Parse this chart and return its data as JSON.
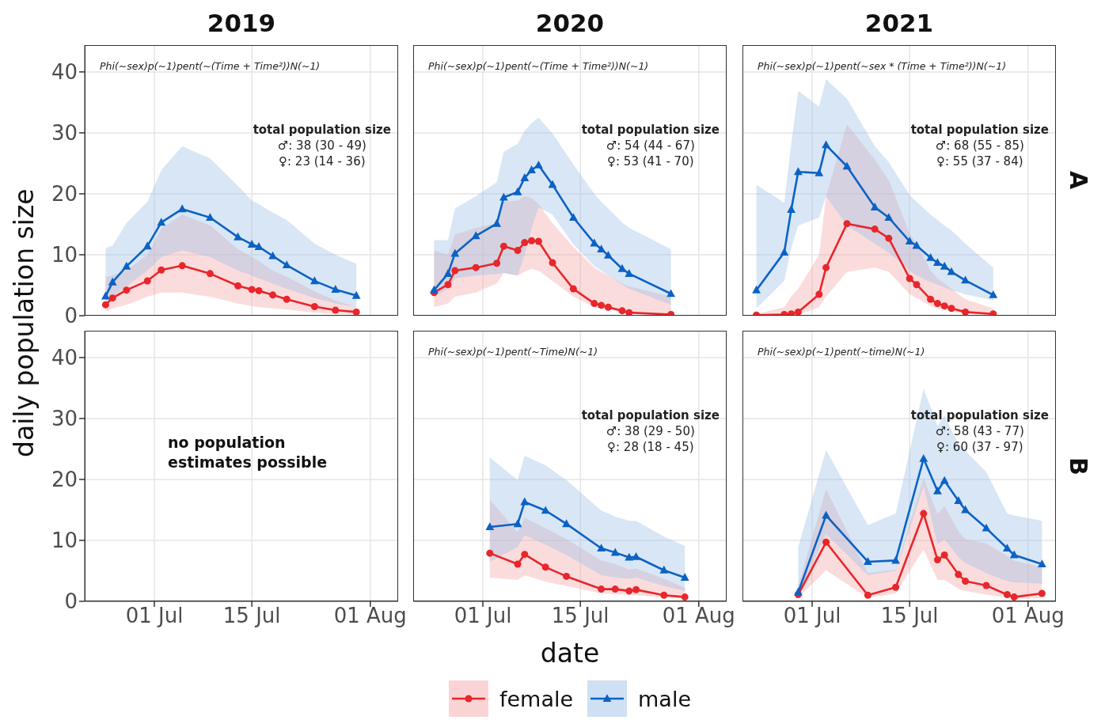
{
  "chart_data": [
    {
      "type": "line",
      "title": "2019",
      "ylabel": "daily population size",
      "x": [
        "2019-06-24",
        "2019-06-25",
        "2019-06-27",
        "2019-06-30",
        "2019-07-02",
        "2019-07-05",
        "2019-07-09",
        "2019-07-13",
        "2019-07-15",
        "2019-07-16",
        "2019-07-18",
        "2019-07-20",
        "2019-07-24",
        "2019-07-27",
        "2019-07-30"
      ],
      "series": [
        {
          "name": "female",
          "color": "#e8262b",
          "marker": "circle",
          "values": [
            1.8,
            2.9,
            4.2,
            5.7,
            7.5,
            8.2,
            6.9,
            4.9,
            4.3,
            4.1,
            3.4,
            2.7,
            1.5,
            0.9,
            0.6
          ],
          "lower": [
            0.7,
            1.2,
            1.8,
            3.1,
            3.8,
            3.8,
            3.1,
            2.0,
            1.6,
            1.4,
            1.2,
            1.0,
            0.5,
            0.3,
            0.2
          ],
          "upper": [
            6.4,
            6.6,
            7.4,
            10.0,
            14.3,
            16.6,
            14.8,
            10.9,
            9.6,
            9.0,
            7.4,
            6.4,
            4.0,
            2.5,
            1.4
          ]
        },
        {
          "name": "male",
          "color": "#0b62c4",
          "marker": "triangle",
          "values": [
            3.2,
            5.5,
            8.1,
            11.4,
            15.3,
            17.5,
            16.1,
            12.9,
            11.7,
            11.3,
            9.8,
            8.3,
            5.7,
            4.3,
            3.3
          ],
          "lower": [
            2.5,
            3.1,
            4.8,
            7.4,
            9.6,
            10.7,
            9.6,
            7.4,
            6.6,
            6.1,
            5.3,
            4.4,
            2.9,
            2.0,
            1.4
          ],
          "upper": [
            11.1,
            11.5,
            15.2,
            18.7,
            23.9,
            27.8,
            25.8,
            21.3,
            18.9,
            18.3,
            16.9,
            15.7,
            11.8,
            10.0,
            8.5
          ]
        }
      ],
      "xlim": [
        "2019-06-21",
        "2019-08-05"
      ],
      "ylim": [
        0,
        44.4
      ],
      "xticks": [
        {
          "value": "2019-07-01",
          "label": null
        },
        {
          "value": "2019-07-15",
          "label": null
        },
        {
          "value": "2019-08-01",
          "label": null
        }
      ],
      "yticks": [
        0,
        10,
        20,
        30,
        40
      ],
      "grid": true,
      "tick_labels": "y",
      "legend": "bottom",
      "annotations": [
        "Phi(~sex)p(~1)pent(~(Time + Time²))N(~1)",
        "total population size",
        "♂: 38 (30 - 49)",
        "♀: 23 (14 - 36)"
      ]
    },
    {
      "type": "line",
      "title": "2020",
      "x": [
        "2020-06-24",
        "2020-06-26",
        "2020-06-27",
        "2020-06-30",
        "2020-07-03",
        "2020-07-04",
        "2020-07-06",
        "2020-07-07",
        "2020-07-08",
        "2020-07-09",
        "2020-07-11",
        "2020-07-14",
        "2020-07-17",
        "2020-07-18",
        "2020-07-19",
        "2020-07-21",
        "2020-07-22",
        "2020-07-28"
      ],
      "series": [
        {
          "color": "#e8262b",
          "marker": "circle",
          "values": [
            3.8,
            5.1,
            7.4,
            7.9,
            8.6,
            11.4,
            10.7,
            12.0,
            12.3,
            12.2,
            8.7,
            4.4,
            2.0,
            1.7,
            1.4,
            0.8,
            0.5,
            0.2
          ],
          "lower": [
            1.4,
            2.0,
            3.1,
            3.8,
            5.3,
            7.0,
            6.6,
            7.2,
            7.7,
            7.4,
            5.7,
            3.1,
            1.4,
            1.2,
            1.0,
            0.5,
            0.3,
            0.1
          ],
          "upper": [
            10.7,
            10.0,
            13.3,
            14.4,
            15.2,
            18.7,
            18.9,
            19.6,
            19.3,
            18.3,
            15.2,
            11.3,
            7.9,
            7.2,
            6.6,
            5.3,
            4.8,
            3.1
          ]
        },
        {
          "color": "#0b62c4",
          "marker": "triangle",
          "values": [
            4.2,
            6.9,
            10.2,
            13.1,
            15.1,
            19.4,
            20.3,
            22.6,
            23.9,
            24.7,
            21.5,
            16.1,
            11.9,
            10.9,
            9.9,
            7.7,
            6.9,
            3.6
          ],
          "lower": [
            3.1,
            4.4,
            6.1,
            6.6,
            6.8,
            7.0,
            6.6,
            10.0,
            14.3,
            17.8,
            16.6,
            11.7,
            8.1,
            7.4,
            6.6,
            5.1,
            4.4,
            1.8
          ],
          "upper": [
            12.4,
            12.4,
            17.6,
            19.6,
            21.9,
            26.9,
            28.2,
            30.3,
            31.6,
            32.5,
            29.9,
            24.8,
            20.0,
            18.7,
            17.6,
            15.3,
            14.4,
            10.9
          ]
        }
      ],
      "xlim": [
        "2020-06-21",
        "2020-08-05"
      ],
      "ylim": [
        0,
        44.4
      ],
      "xticks": [
        {
          "value": "2020-07-01",
          "label": null
        },
        {
          "value": "2020-07-15",
          "label": null
        },
        {
          "value": "2020-08-01",
          "label": null
        }
      ],
      "yticks": [
        0,
        10,
        20,
        30,
        40
      ],
      "grid": true,
      "tick_labels": false,
      "annotations": [
        "Phi(~sex)p(~1)pent(~(Time + Time²))N(~1)",
        "total population size",
        "♂: 54 (44 - 67)",
        "♀: 53 (41 - 70)"
      ]
    },
    {
      "type": "line",
      "title": "2021",
      "y2label": "A",
      "x": [
        "2021-06-23",
        "2021-06-27",
        "2021-06-28",
        "2021-06-29",
        "2021-07-02",
        "2021-07-03",
        "2021-07-06",
        "2021-07-10",
        "2021-07-12",
        "2021-07-15",
        "2021-07-16",
        "2021-07-18",
        "2021-07-19",
        "2021-07-20",
        "2021-07-21",
        "2021-07-23",
        "2021-07-27"
      ],
      "series": [
        {
          "color": "#e8262b",
          "marker": "circle",
          "values": [
            0.1,
            0.2,
            0.3,
            0.6,
            3.5,
            7.9,
            15.1,
            14.2,
            12.7,
            6.1,
            5.1,
            2.7,
            2.0,
            1.6,
            1.2,
            0.6,
            0.3
          ],
          "lower": [
            0.0,
            0.0,
            0.1,
            0.1,
            1.4,
            3.1,
            7.2,
            7.9,
            7.2,
            3.5,
            2.9,
            1.6,
            1.2,
            1.0,
            0.7,
            0.3,
            0.1
          ],
          "upper": [
            0.3,
            1.4,
            3.1,
            4.4,
            10.0,
            19.6,
            31.4,
            25.6,
            22.2,
            13.5,
            11.8,
            7.4,
            6.1,
            5.3,
            4.4,
            2.7,
            1.2
          ]
        },
        {
          "color": "#0b62c4",
          "marker": "triangle",
          "values": [
            4.2,
            10.4,
            17.4,
            23.6,
            23.4,
            28.0,
            24.5,
            17.8,
            16.1,
            12.2,
            11.5,
            9.5,
            8.7,
            8.1,
            7.2,
            5.8,
            3.4
          ],
          "lower": [
            1.2,
            5.7,
            11.1,
            14.8,
            16.1,
            19.6,
            14.8,
            11.8,
            10.4,
            7.4,
            6.6,
            5.5,
            5.1,
            4.6,
            4.2,
            3.5,
            2.5
          ],
          "upper": [
            21.5,
            18.5,
            28.2,
            36.9,
            34.3,
            38.8,
            35.6,
            27.8,
            25.2,
            19.8,
            18.7,
            16.6,
            15.7,
            14.8,
            14.0,
            11.8,
            7.9
          ]
        }
      ],
      "xlim": [
        "2021-06-21",
        "2021-08-05"
      ],
      "ylim": [
        0,
        44.4
      ],
      "xticks": [
        {
          "value": "2021-07-01",
          "label": null
        },
        {
          "value": "2021-07-15",
          "label": null
        },
        {
          "value": "2021-08-01",
          "label": null
        }
      ],
      "yticks": [
        0,
        10,
        20,
        30,
        40
      ],
      "grid": true,
      "tick_labels": false,
      "annotations": [
        "Phi(~sex)p(~1)pent(~sex * (Time + Time²))N(~1)",
        "total population size",
        "♂: 68 (55 - 85)",
        "♀: 55 (37 - 84)"
      ]
    },
    {
      "type": "line",
      "xlim": [
        "2019-06-21",
        "2019-08-05"
      ],
      "ylim": [
        0,
        44.4
      ],
      "xticks": [
        {
          "value": "2019-07-01",
          "label": "01 Jul"
        },
        {
          "value": "2019-07-15",
          "label": "15 Jul"
        },
        {
          "value": "2019-08-01",
          "label": "01 Aug"
        }
      ],
      "yticks": [
        0,
        10,
        20,
        30,
        40
      ],
      "grid": true,
      "annotations": [
        "no population estimates possible"
      ]
    },
    {
      "type": "line",
      "xlabel": "date",
      "x": [
        "2020-07-02",
        "2020-07-06",
        "2020-07-07",
        "2020-07-10",
        "2020-07-13",
        "2020-07-18",
        "2020-07-20",
        "2020-07-22",
        "2020-07-23",
        "2020-07-27",
        "2020-07-30"
      ],
      "series": [
        {
          "color": "#e8262b",
          "marker": "circle",
          "values": [
            7.9,
            6.1,
            7.7,
            5.6,
            4.1,
            2.0,
            2.0,
            1.7,
            1.9,
            1.0,
            0.7
          ],
          "lower": [
            3.9,
            3.5,
            4.3,
            3.2,
            2.5,
            1.3,
            1.2,
            1.0,
            1.0,
            0.6,
            0.5
          ],
          "upper": [
            16.7,
            11.3,
            13.7,
            12.0,
            10.2,
            6.7,
            6.1,
            5.2,
            5.4,
            3.7,
            2.2
          ]
        },
        {
          "color": "#0b62c4",
          "marker": "triangle",
          "values": [
            12.2,
            12.7,
            16.3,
            14.9,
            12.7,
            8.7,
            8.0,
            7.2,
            7.3,
            5.1,
            3.9
          ],
          "lower": [
            6.5,
            8.9,
            10.8,
            9.3,
            7.6,
            4.3,
            3.9,
            3.7,
            3.9,
            2.5,
            1.7
          ],
          "upper": [
            23.6,
            19.9,
            23.9,
            22.3,
            19.9,
            14.9,
            13.9,
            13.2,
            13.2,
            10.6,
            9.1
          ]
        }
      ],
      "xlim": [
        "2020-06-21",
        "2020-08-05"
      ],
      "ylim": [
        0,
        44.4
      ],
      "xticks": [
        {
          "value": "2020-07-01",
          "label": "01 Jul"
        },
        {
          "value": "2020-07-15",
          "label": "15 Jul"
        },
        {
          "value": "2020-08-01",
          "label": "01 Aug"
        }
      ],
      "yticks": [
        0,
        10,
        20,
        30,
        40
      ],
      "grid": true,
      "tick_labels": "x",
      "annotations": [
        "Phi(~sex)p(~1)pent(~Time)N(~1)",
        "total population size",
        "♂: 38 (29 - 50)",
        "♀: 28 (18 - 45)"
      ]
    },
    {
      "type": "line",
      "y2label": "B",
      "x": [
        "2021-06-29",
        "2021-07-03",
        "2021-07-09",
        "2021-07-13",
        "2021-07-17",
        "2021-07-19",
        "2021-07-20",
        "2021-07-22",
        "2021-07-23",
        "2021-07-26",
        "2021-07-29",
        "2021-07-30",
        "2021-08-03"
      ],
      "series": [
        {
          "color": "#e8262b",
          "marker": "circle",
          "values": [
            1.1,
            9.7,
            1.0,
            2.3,
            14.4,
            6.8,
            7.6,
            4.4,
            3.3,
            2.6,
            1.1,
            0.7,
            1.3
          ],
          "lower": [
            0.6,
            5.1,
            0.6,
            1.3,
            8.5,
            3.5,
            3.5,
            2.0,
            1.7,
            1.1,
            0.6,
            0.4,
            0.6
          ],
          "upper": [
            2.5,
            18.4,
            4.6,
            5.2,
            20.2,
            14.3,
            15.6,
            11.5,
            10.2,
            9.5,
            7.4,
            6.7,
            5.6
          ]
        },
        {
          "color": "#0b62c4",
          "marker": "triangle",
          "values": [
            1.5,
            14.1,
            6.5,
            6.7,
            23.4,
            18.1,
            19.8,
            16.5,
            15.0,
            12.0,
            8.7,
            7.6,
            6.1
          ],
          "lower": [
            1.0,
            11.0,
            4.3,
            5.0,
            18.9,
            9.3,
            10.2,
            7.2,
            6.3,
            4.6,
            3.3,
            3.1,
            2.9
          ],
          "upper": [
            8.9,
            24.8,
            12.5,
            14.4,
            34.9,
            28.8,
            30.5,
            25.8,
            24.7,
            21.2,
            14.4,
            14.1,
            13.2
          ]
        }
      ],
      "xlim": [
        "2021-06-21",
        "2021-08-05"
      ],
      "ylim": [
        0,
        44.4
      ],
      "xticks": [
        {
          "value": "2021-07-01",
          "label": "01 Jul"
        },
        {
          "value": "2021-07-15",
          "label": "15 Jul"
        },
        {
          "value": "2021-08-01",
          "label": "01 Aug"
        }
      ],
      "yticks": [
        0,
        10,
        20,
        30,
        40
      ],
      "grid": true,
      "tick_labels": "x",
      "annotations": [
        "Phi(~sex)p(~1)pent(~time)N(~1)",
        "total population size",
        "♂: 58 (43 - 77)",
        "♀: 60 (37 - 97)"
      ]
    }
  ]
}
